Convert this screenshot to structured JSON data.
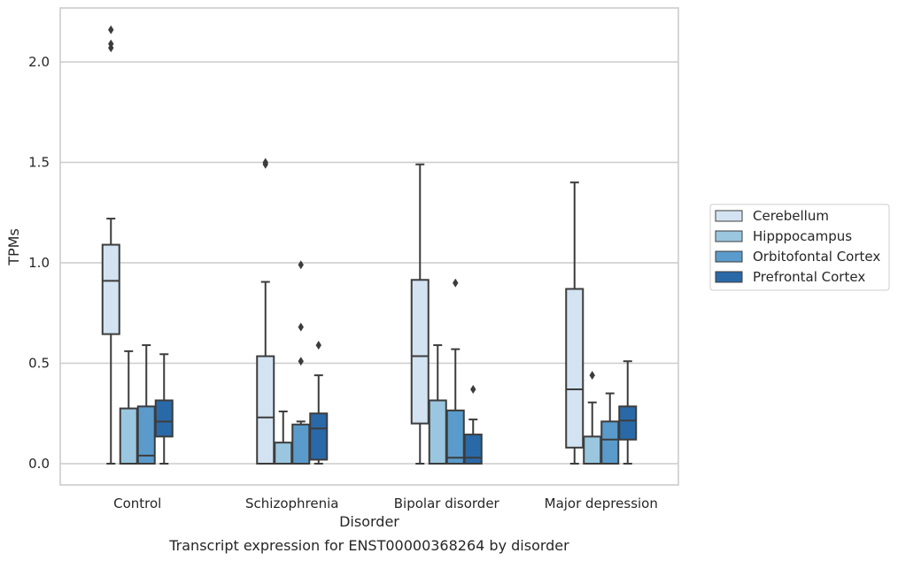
{
  "chart_data": {
    "type": "box",
    "caption": "Transcript expression for ENST00000368264 by disorder",
    "xlabel": "Disorder",
    "ylabel": "TPMs",
    "ylim": [
      -0.1,
      2.28
    ],
    "yticks": [
      "0.0",
      "0.5",
      "1.0",
      "1.5",
      "2.0"
    ],
    "grid": true,
    "legend_position": "right",
    "categories": [
      "Control",
      "Schizophrenia",
      "Bipolar disorder",
      "Major depression"
    ],
    "series": [
      {
        "name": "Cerebellum",
        "color": "#d3e3f2",
        "boxes": [
          {
            "whislo": 0.0,
            "q1": 0.645,
            "med": 0.91,
            "q3": 1.09,
            "whishi": 1.22,
            "fliers": [
              2.07,
              2.09,
              2.16
            ]
          },
          {
            "whislo": 0.0,
            "q1": 0.0,
            "med": 0.23,
            "q3": 0.535,
            "whishi": 0.905,
            "fliers": [
              1.49,
              1.5
            ]
          },
          {
            "whislo": 0.0,
            "q1": 0.2,
            "med": 0.535,
            "q3": 0.915,
            "whishi": 1.49,
            "fliers": []
          },
          {
            "whislo": 0.0,
            "q1": 0.08,
            "med": 0.37,
            "q3": 0.87,
            "whishi": 1.4,
            "fliers": []
          }
        ]
      },
      {
        "name": "Hipppocampus",
        "color": "#9ac6df",
        "boxes": [
          {
            "whislo": 0.0,
            "q1": 0.0,
            "med": 0.0,
            "q3": 0.275,
            "whishi": 0.56,
            "fliers": []
          },
          {
            "whislo": 0.0,
            "q1": 0.0,
            "med": 0.0,
            "q3": 0.105,
            "whishi": 0.26,
            "fliers": []
          },
          {
            "whislo": 0.0,
            "q1": 0.0,
            "med": 0.0,
            "q3": 0.315,
            "whishi": 0.59,
            "fliers": []
          },
          {
            "whislo": 0.0,
            "q1": 0.0,
            "med": 0.0,
            "q3": 0.135,
            "whishi": 0.305,
            "fliers": [
              0.44
            ]
          }
        ]
      },
      {
        "name": "Orbitofontal Cortex",
        "color": "#5a9bcc",
        "boxes": [
          {
            "whislo": 0.0,
            "q1": 0.0,
            "med": 0.04,
            "q3": 0.285,
            "whishi": 0.59,
            "fliers": []
          },
          {
            "whislo": 0.0,
            "q1": 0.0,
            "med": 0.0,
            "q3": 0.195,
            "whishi": 0.21,
            "fliers": [
              0.51,
              0.68,
              0.99
            ]
          },
          {
            "whislo": 0.0,
            "q1": 0.0,
            "med": 0.03,
            "q3": 0.265,
            "whishi": 0.57,
            "fliers": [
              0.9
            ]
          },
          {
            "whislo": 0.0,
            "q1": 0.0,
            "med": 0.12,
            "q3": 0.21,
            "whishi": 0.35,
            "fliers": []
          }
        ]
      },
      {
        "name": "Prefrontal Cortex",
        "color": "#2a69a8",
        "boxes": [
          {
            "whislo": 0.0,
            "q1": 0.135,
            "med": 0.21,
            "q3": 0.315,
            "whishi": 0.545,
            "fliers": []
          },
          {
            "whislo": 0.0,
            "q1": 0.02,
            "med": 0.175,
            "q3": 0.25,
            "whishi": 0.44,
            "fliers": [
              0.59
            ]
          },
          {
            "whislo": 0.0,
            "q1": 0.0,
            "med": 0.03,
            "q3": 0.145,
            "whishi": 0.22,
            "fliers": [
              0.37
            ]
          },
          {
            "whislo": 0.0,
            "q1": 0.12,
            "med": 0.215,
            "q3": 0.285,
            "whishi": 0.51,
            "fliers": []
          }
        ]
      }
    ]
  }
}
